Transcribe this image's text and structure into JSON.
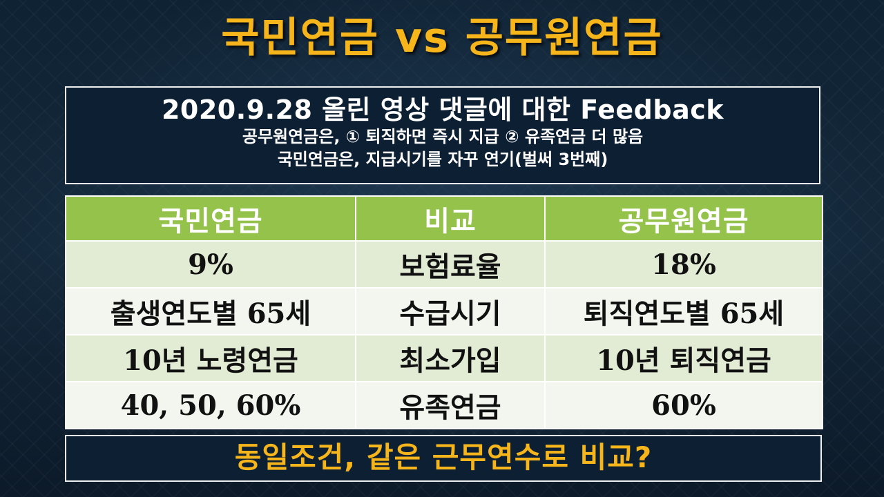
{
  "title": "국민연금 vs 공무원연금",
  "feedback": {
    "heading": "2020.9.28 올린 영상 댓글에 대한 Feedback",
    "line1": "공무원연금은, ① 퇴직하면 즉시 지급 ② 유족연금 더 많음",
    "line2": "국민연금은, 지급시기를 자꾸 연기(벌써 3번째)"
  },
  "table": {
    "headers": [
      "국민연금",
      "비교",
      "공무원연금"
    ],
    "rows": [
      [
        "9%",
        "보험료율",
        "18%"
      ],
      [
        "출생연도별 65세",
        "수급시기",
        "퇴직연도별 65세"
      ],
      [
        "10년 노령연금",
        "최소가입",
        "10년 퇴직연금"
      ],
      [
        "40, 50, 60%",
        "유족연금",
        "60%"
      ]
    ]
  },
  "question": "동일조건, 같은 근무연수로 비교?",
  "colors": {
    "title": "#f6b51b",
    "header_green": "#94c24a",
    "row_dark": "#e2ebd4",
    "row_light": "#f3f6ee",
    "box_bg": "#0d1f33"
  }
}
